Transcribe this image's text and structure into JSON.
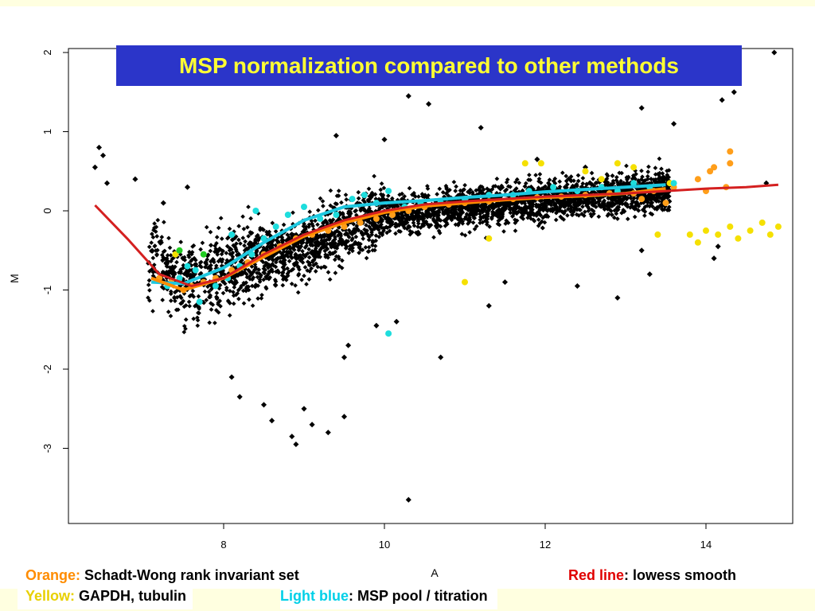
{
  "slide": {
    "title": "MSP normalization compared to other methods",
    "legend": {
      "orange": {
        "key": "Orange:",
        "text": " Schadt-Wong rank invariant set",
        "color": "#ff8c00"
      },
      "red": {
        "key": "Red line",
        "text": ": lowess smooth",
        "color": "#e00000"
      },
      "yellow": {
        "key": "Yellow:",
        "text": " GAPDH, tubulin",
        "color": "#e8d000"
      },
      "blue": {
        "key": "Light blue",
        "text": ": MSP pool / titration",
        "color": "#00d0e8"
      }
    }
  },
  "chart_data": {
    "type": "scatter",
    "title": "",
    "xlabel": "A",
    "ylabel": "M",
    "xlim": [
      6.0,
      15.0
    ],
    "ylim": [
      -3.7,
      2.1
    ],
    "xticks": [
      "8",
      "10",
      "12",
      "14"
    ],
    "yticks": [
      "2",
      "1",
      "0",
      "-1",
      "-2",
      "-3"
    ],
    "grid": false,
    "series": [
      {
        "color": "#000000",
        "points": [
          [
            6.4,
            0.55
          ],
          [
            6.45,
            0.8
          ],
          [
            6.5,
            0.7
          ],
          [
            6.55,
            0.35
          ],
          [
            6.9,
            0.4
          ],
          [
            7.25,
            0.1
          ],
          [
            7.55,
            0.3
          ],
          [
            10.3,
            1.45
          ],
          [
            10.55,
            1.35
          ],
          [
            9.4,
            0.95
          ],
          [
            10.0,
            0.9
          ],
          [
            11.2,
            1.05
          ],
          [
            11.9,
            0.65
          ],
          [
            12.5,
            0.55
          ],
          [
            13.2,
            1.3
          ],
          [
            13.6,
            1.1
          ],
          [
            14.2,
            1.4
          ],
          [
            14.35,
            1.5
          ],
          [
            14.85,
            2.0
          ],
          [
            10.3,
            -3.65
          ],
          [
            8.9,
            -2.95
          ],
          [
            8.85,
            -2.85
          ],
          [
            9.1,
            -2.7
          ],
          [
            9.5,
            -2.6
          ],
          [
            8.6,
            -2.65
          ],
          [
            8.1,
            -2.1
          ],
          [
            8.2,
            -2.35
          ],
          [
            8.5,
            -2.45
          ],
          [
            9.0,
            -2.5
          ],
          [
            9.3,
            -2.8
          ],
          [
            9.55,
            -1.7
          ],
          [
            9.5,
            -1.85
          ],
          [
            9.9,
            -1.45
          ],
          [
            10.15,
            -1.4
          ],
          [
            10.7,
            -1.85
          ],
          [
            11.3,
            -1.2
          ],
          [
            11.5,
            -0.9
          ],
          [
            12.4,
            -0.95
          ],
          [
            12.9,
            -1.1
          ],
          [
            13.3,
            -0.8
          ],
          [
            13.2,
            -0.5
          ],
          [
            14.1,
            -0.6
          ],
          [
            14.15,
            -0.45
          ],
          [
            14.75,
            0.35
          ]
        ]
      },
      {
        "color": "#ff9e1a",
        "points": [
          [
            7.2,
            -0.85
          ],
          [
            7.35,
            -0.9
          ],
          [
            7.5,
            -1.0
          ],
          [
            7.6,
            -0.95
          ],
          [
            7.75,
            -0.9
          ],
          [
            7.9,
            -0.85
          ],
          [
            8.1,
            -0.75
          ],
          [
            8.3,
            -0.65
          ],
          [
            8.5,
            -0.55
          ],
          [
            8.7,
            -0.45
          ],
          [
            8.9,
            -0.35
          ],
          [
            9.1,
            -0.3
          ],
          [
            9.3,
            -0.25
          ],
          [
            9.5,
            -0.2
          ],
          [
            9.7,
            -0.15
          ],
          [
            9.9,
            -0.1
          ],
          [
            10.1,
            -0.05
          ],
          [
            10.3,
            0.0
          ],
          [
            10.5,
            0.05
          ],
          [
            10.8,
            0.08
          ],
          [
            11.0,
            0.1
          ],
          [
            11.3,
            0.12
          ],
          [
            11.6,
            0.15
          ],
          [
            11.9,
            0.17
          ],
          [
            12.2,
            0.18
          ],
          [
            12.5,
            0.2
          ],
          [
            12.8,
            0.22
          ],
          [
            13.1,
            0.22
          ],
          [
            13.35,
            0.25
          ],
          [
            13.6,
            0.3
          ],
          [
            13.9,
            0.4
          ],
          [
            14.05,
            0.5
          ],
          [
            14.1,
            0.55
          ],
          [
            14.3,
            0.75
          ],
          [
            14.3,
            0.6
          ],
          [
            14.25,
            0.3
          ],
          [
            14.0,
            0.25
          ],
          [
            13.5,
            0.1
          ],
          [
            13.2,
            0.15
          ]
        ]
      },
      {
        "color": "#f5e000",
        "points": [
          [
            7.4,
            -0.55
          ],
          [
            11.3,
            -0.35
          ],
          [
            11.0,
            -0.9
          ],
          [
            11.75,
            0.6
          ],
          [
            11.95,
            0.6
          ],
          [
            12.5,
            0.5
          ],
          [
            12.7,
            0.4
          ],
          [
            12.9,
            0.6
          ],
          [
            13.1,
            0.55
          ],
          [
            13.4,
            -0.3
          ],
          [
            13.55,
            0.35
          ],
          [
            13.8,
            -0.3
          ],
          [
            13.9,
            -0.4
          ],
          [
            14.0,
            -0.25
          ],
          [
            14.15,
            -0.3
          ],
          [
            14.3,
            -0.2
          ],
          [
            14.4,
            -0.35
          ],
          [
            14.55,
            -0.25
          ],
          [
            14.7,
            -0.15
          ],
          [
            14.8,
            -0.3
          ],
          [
            14.9,
            -0.2
          ]
        ]
      },
      {
        "color": "#1edddd",
        "points": [
          [
            7.3,
            -0.95
          ],
          [
            7.45,
            -0.85
          ],
          [
            7.55,
            -0.7
          ],
          [
            7.65,
            -0.75
          ],
          [
            7.7,
            -1.15
          ],
          [
            7.9,
            -0.95
          ],
          [
            8.05,
            -0.85
          ],
          [
            8.2,
            -0.7
          ],
          [
            8.35,
            -0.55
          ],
          [
            8.5,
            -0.35
          ],
          [
            8.65,
            -0.2
          ],
          [
            8.8,
            -0.05
          ],
          [
            9.0,
            0.05
          ],
          [
            9.2,
            -0.1
          ],
          [
            9.4,
            -0.05
          ],
          [
            9.6,
            0.15
          ],
          [
            9.75,
            0.2
          ],
          [
            9.9,
            0.1
          ],
          [
            10.05,
            0.25
          ],
          [
            10.25,
            0.05
          ],
          [
            10.45,
            0.1
          ],
          [
            10.7,
            0.1
          ],
          [
            11.0,
            0.15
          ],
          [
            11.3,
            0.2
          ],
          [
            11.6,
            0.2
          ],
          [
            11.8,
            0.25
          ],
          [
            12.1,
            0.3
          ],
          [
            12.4,
            0.25
          ],
          [
            12.7,
            0.3
          ],
          [
            12.9,
            0.25
          ],
          [
            13.1,
            0.35
          ],
          [
            13.3,
            0.3
          ],
          [
            13.6,
            0.35
          ],
          [
            10.05,
            -1.55
          ],
          [
            8.1,
            -0.3
          ],
          [
            8.4,
            0.0
          ]
        ]
      },
      {
        "color": "#22cc22",
        "points": [
          [
            7.45,
            -0.5
          ],
          [
            7.75,
            -0.55
          ]
        ]
      }
    ],
    "lines": [
      {
        "label": "lowess smooth",
        "color": "#d42020",
        "x": [
          6.4,
          6.8,
          7.2,
          7.6,
          8.0,
          8.5,
          9.0,
          9.5,
          10.0,
          10.5,
          11.0,
          11.5,
          12.0,
          12.5,
          13.0,
          13.5,
          14.0,
          14.5,
          14.9
        ],
        "y": [
          0.07,
          -0.35,
          -0.8,
          -0.95,
          -0.85,
          -0.55,
          -0.3,
          -0.12,
          0.0,
          0.08,
          0.12,
          0.15,
          0.18,
          0.2,
          0.22,
          0.25,
          0.28,
          0.3,
          0.33
        ]
      },
      {
        "label": "Schadt-Wong rank invariant set",
        "color": "#ff8c00",
        "x": [
          7.1,
          7.5,
          8.0,
          8.5,
          9.0,
          9.5,
          10.0,
          10.5,
          11.0,
          11.5,
          12.0,
          12.5,
          13.0,
          13.5
        ],
        "y": [
          -0.85,
          -1.0,
          -0.85,
          -0.58,
          -0.32,
          -0.15,
          -0.02,
          0.06,
          0.1,
          0.14,
          0.17,
          0.19,
          0.22,
          0.28
        ]
      },
      {
        "label": "MSP pool / titration",
        "color": "#1ec8e0",
        "x": [
          7.1,
          7.5,
          8.0,
          8.5,
          9.0,
          9.5,
          10.0,
          10.5,
          11.0,
          11.5,
          12.0,
          12.5,
          13.0,
          13.5
        ],
        "y": [
          -0.9,
          -0.92,
          -0.72,
          -0.4,
          -0.12,
          0.05,
          0.1,
          0.13,
          0.17,
          0.2,
          0.24,
          0.27,
          0.3,
          0.33
        ]
      }
    ]
  }
}
